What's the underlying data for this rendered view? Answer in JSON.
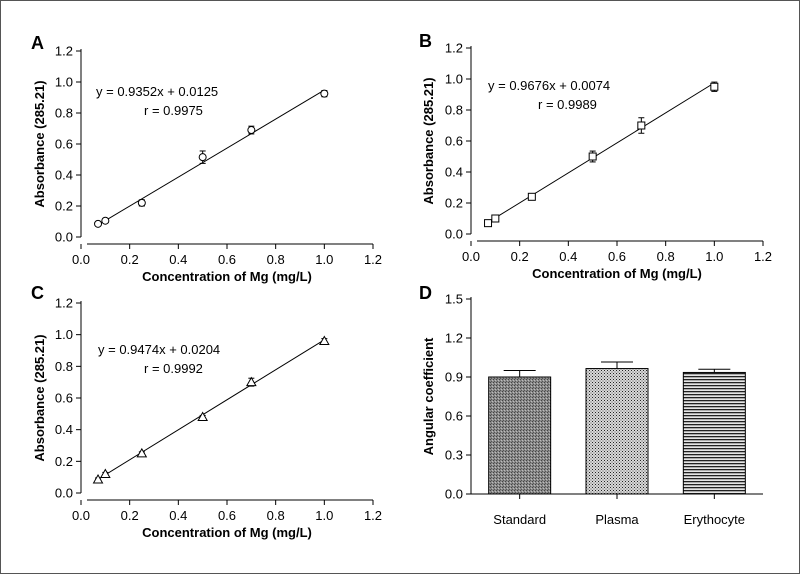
{
  "chart_data": [
    {
      "panel": "A",
      "type": "scatter",
      "xlabel": "Concentration of Mg (mg/L)",
      "ylabel": "Absorbance (285.21)",
      "xlim": [
        0.0,
        1.2
      ],
      "ylim": [
        0.0,
        1.2
      ],
      "xticks": [
        "0.0",
        "0.2",
        "0.4",
        "0.6",
        "0.8",
        "1.0",
        "1.2"
      ],
      "yticks": [
        "0.0",
        "0.2",
        "0.4",
        "0.6",
        "0.8",
        "1.0",
        "1.2"
      ],
      "marker": "circle",
      "x": [
        0.07,
        0.1,
        0.25,
        0.5,
        0.7,
        1.0
      ],
      "y": [
        0.085,
        0.105,
        0.22,
        0.515,
        0.69,
        0.925
      ],
      "err": [
        0.01,
        0.01,
        0.02,
        0.04,
        0.025,
        0.02
      ],
      "fit": {
        "slope": 0.9352,
        "intercept": 0.0125
      },
      "equation": "y = 0.9352x + 0.0125",
      "r_label": "r = 0.9975"
    },
    {
      "panel": "B",
      "type": "scatter",
      "xlabel": "Concentration of Mg (mg/L)",
      "ylabel": "Absorbance (285.21)",
      "xlim": [
        0.0,
        1.2
      ],
      "ylim": [
        0.0,
        1.2
      ],
      "xticks": [
        "0.0",
        "0.2",
        "0.4",
        "0.6",
        "0.8",
        "1.0",
        "1.2"
      ],
      "yticks": [
        "0.0",
        "0.2",
        "0.4",
        "0.6",
        "0.8",
        "1.0",
        "1.2"
      ],
      "marker": "square",
      "x": [
        0.07,
        0.1,
        0.25,
        0.5,
        0.7,
        1.0
      ],
      "y": [
        0.07,
        0.1,
        0.24,
        0.5,
        0.7,
        0.95
      ],
      "err": [
        0.01,
        0.01,
        0.015,
        0.035,
        0.05,
        0.03
      ],
      "fit": {
        "slope": 0.9676,
        "intercept": 0.0074
      },
      "equation": "y = 0.9676x + 0.0074",
      "r_label": "r = 0.9989"
    },
    {
      "panel": "C",
      "type": "scatter",
      "xlabel": "Concentration of Mg (mg/L)",
      "ylabel": "Absorbance (285.21)",
      "xlim": [
        0.0,
        1.2
      ],
      "ylim": [
        0.0,
        1.2
      ],
      "xticks": [
        "0.0",
        "0.2",
        "0.4",
        "0.6",
        "0.8",
        "1.0",
        "1.2"
      ],
      "yticks": [
        "0.0",
        "0.2",
        "0.4",
        "0.6",
        "0.8",
        "1.0",
        "1.2"
      ],
      "marker": "triangle",
      "x": [
        0.07,
        0.1,
        0.25,
        0.5,
        0.7,
        1.0
      ],
      "y": [
        0.085,
        0.12,
        0.25,
        0.48,
        0.7,
        0.96
      ],
      "err": [
        0.01,
        0.01,
        0.01,
        0.01,
        0.025,
        0.015
      ],
      "fit": {
        "slope": 0.9474,
        "intercept": 0.0204
      },
      "equation": "y = 0.9474x + 0.0204",
      "r_label": "r = 0.9992"
    },
    {
      "panel": "D",
      "type": "bar",
      "ylabel": "Angular coefficient",
      "categories": [
        "Standard",
        "Plasma",
        "Erythocyte"
      ],
      "values": [
        0.9,
        0.965,
        0.935
      ],
      "err": [
        0.05,
        0.05,
        0.025
      ],
      "ylim": [
        0.0,
        1.5
      ],
      "yticks": [
        "0.0",
        "0.3",
        "0.6",
        "0.9",
        "1.2",
        "1.5"
      ],
      "fill_patterns": [
        "dense-hatch",
        "dots",
        "horizontal-lines"
      ]
    }
  ]
}
